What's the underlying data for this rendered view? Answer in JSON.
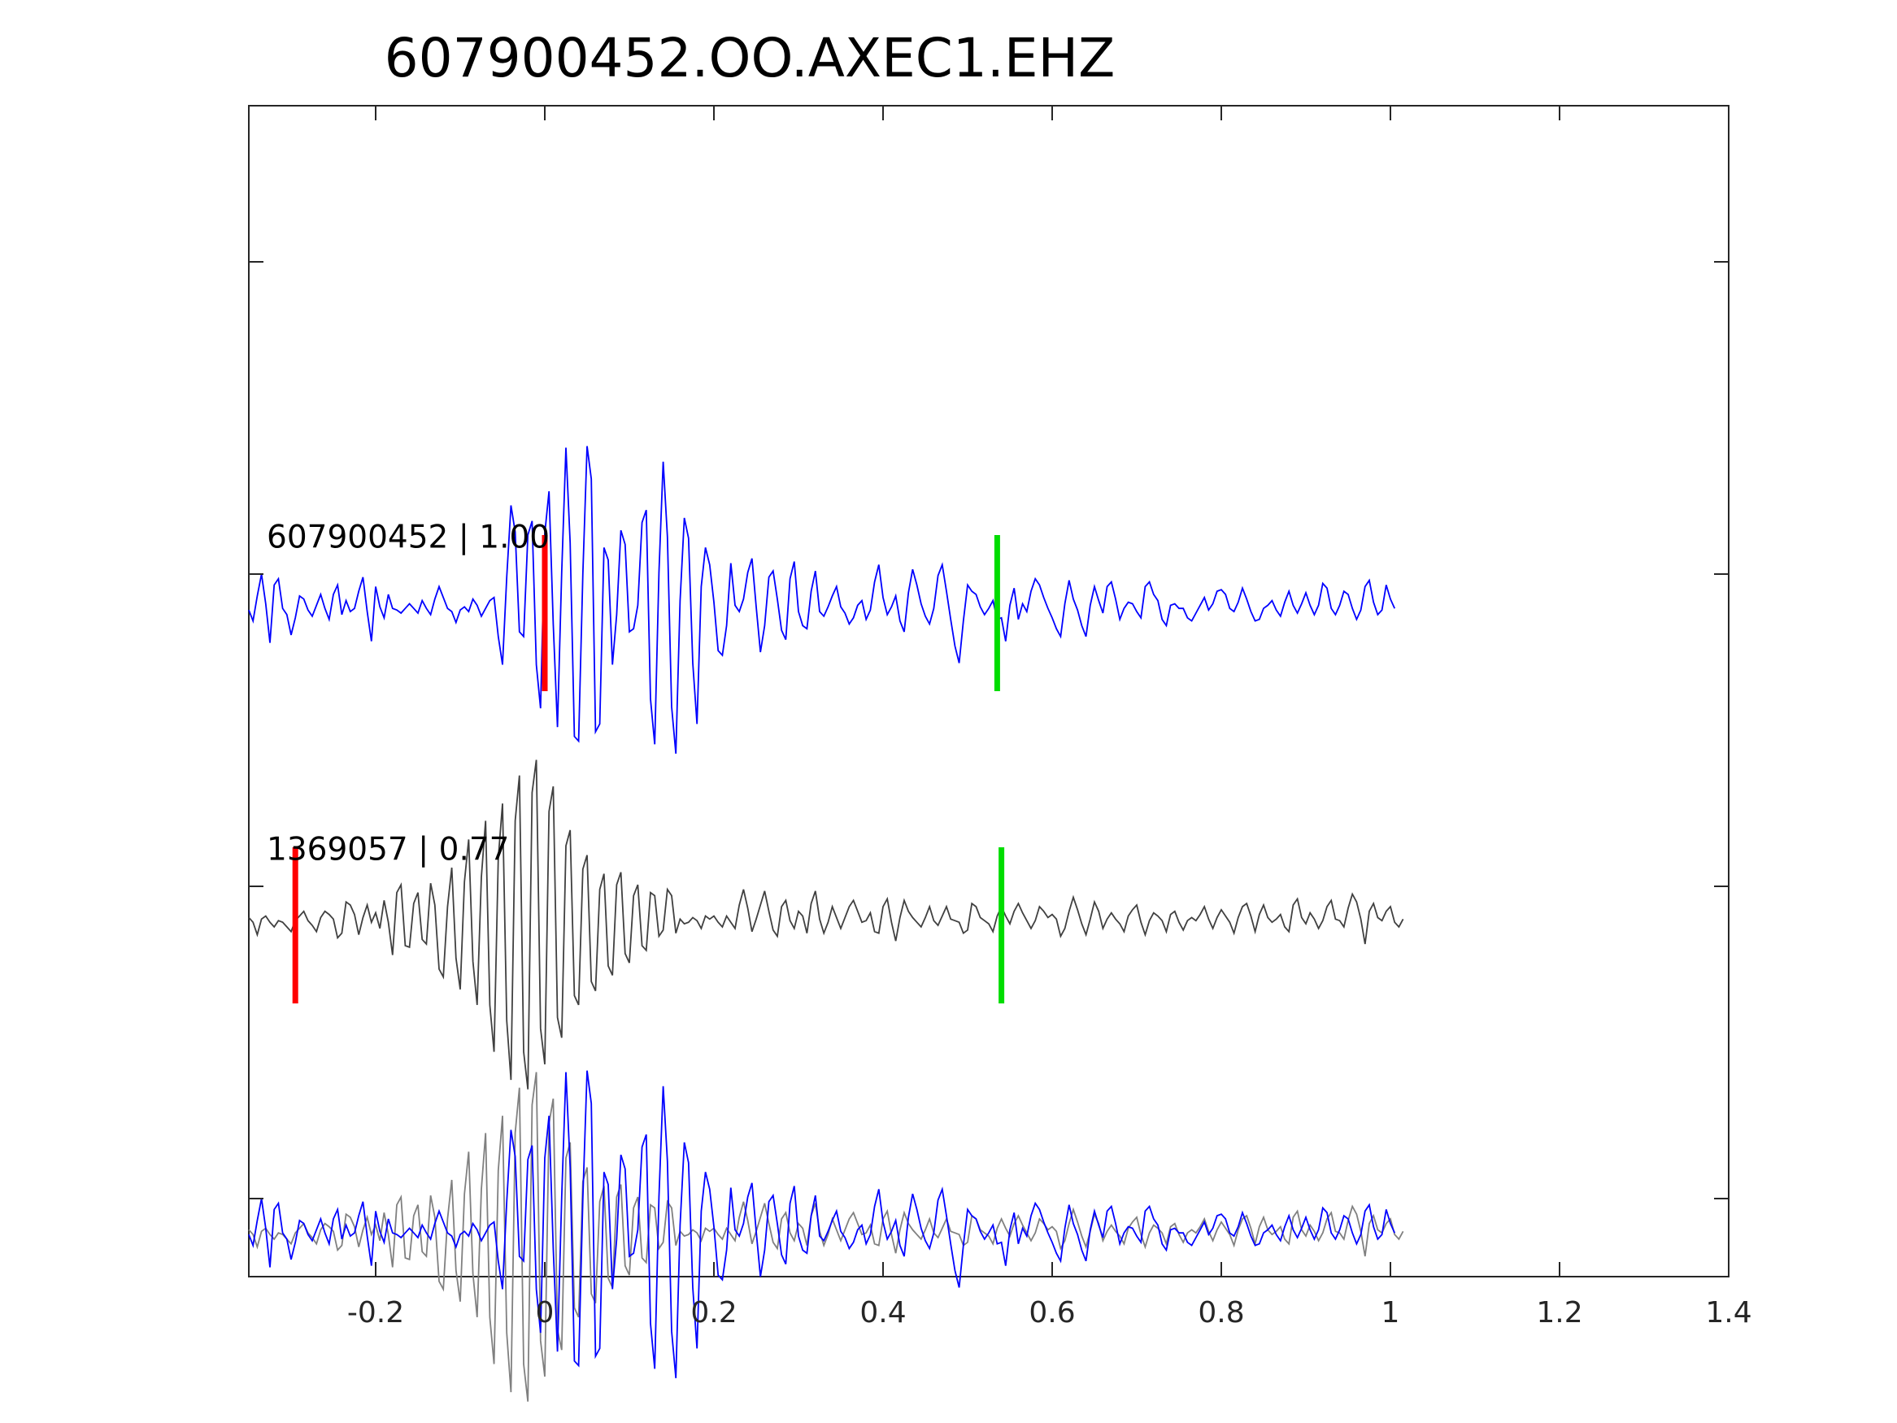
{
  "chart_data": {
    "type": "line",
    "title": "607900452.OO.AXEC1.EHZ",
    "xlabel": "",
    "ylabel": "",
    "xlim": [
      -0.35,
      1.4
    ],
    "xticks": [
      -0.2,
      0,
      0.2,
      0.4,
      0.6,
      0.8,
      1,
      1.2,
      1.4
    ],
    "xtick_labels": [
      "-0.2",
      "0",
      "0.2",
      "0.4",
      "0.6",
      "0.8",
      "1",
      "1.2",
      "1.4"
    ],
    "ylim": [
      -4.25,
      3.25
    ],
    "yticks": [
      -3.75,
      -1.75,
      0.25,
      2.25
    ],
    "grid": false,
    "colors": {
      "primary": "#0000ff",
      "template": "#404040",
      "overlay": "#808080",
      "p_pick": "#ff0000",
      "s_pick": "#00dd00",
      "axis": "#262626"
    },
    "series": [
      {
        "label": "607900452 | 1.00",
        "offset": 0,
        "color": "#0000ff",
        "p_pick": 0.0,
        "s_pick": 0.535,
        "dt": 0.005,
        "t0": -0.35,
        "values": [
          0.02,
          -0.05,
          0.11,
          0.25,
          0.06,
          -0.19,
          0.18,
          0.22,
          0.03,
          -0.01,
          -0.14,
          -0.03,
          0.11,
          0.09,
          0.02,
          -0.02,
          0.05,
          0.12,
          0.03,
          -0.04,
          0.12,
          0.18,
          -0.01,
          0.08,
          0.01,
          0.03,
          0.14,
          0.23,
          0.01,
          -0.18,
          0.17,
          0.04,
          -0.03,
          0.12,
          0.03,
          0.02,
          0.0,
          0.03,
          0.06,
          0.03,
          0.0,
          0.08,
          0.03,
          -0.01,
          0.09,
          0.17,
          0.1,
          0.03,
          0.01,
          -0.06,
          0.02,
          0.04,
          0.01,
          0.09,
          0.05,
          -0.02,
          0.03,
          0.08,
          0.1,
          -0.15,
          -0.33,
          0.23,
          0.69,
          0.52,
          -0.12,
          -0.15,
          0.5,
          0.59,
          -0.33,
          -0.61,
          0.51,
          0.78,
          -0.07,
          -0.73,
          0.26,
          1.06,
          0.45,
          -0.79,
          -0.82,
          0.25,
          1.07,
          0.86,
          -0.76,
          -0.71,
          0.42,
          0.34,
          -0.33,
          -0.01,
          0.53,
          0.44,
          -0.12,
          -0.1,
          0.05,
          0.58,
          0.66,
          -0.55,
          -0.84,
          0.26,
          0.97,
          0.49,
          -0.6,
          -0.9,
          0.08,
          0.61,
          0.48,
          -0.32,
          -0.71,
          0.17,
          0.42,
          0.31,
          0.07,
          -0.24,
          -0.27,
          -0.08,
          0.32,
          0.05,
          0.01,
          0.09,
          0.26,
          0.35,
          0.04,
          -0.25,
          -0.08,
          0.23,
          0.27,
          0.09,
          -0.11,
          -0.17,
          0.22,
          0.33,
          0.01,
          -0.08,
          -0.1,
          0.14,
          0.27,
          0.01,
          -0.02,
          0.04,
          0.11,
          0.17,
          0.04,
          0.0,
          -0.07,
          -0.03,
          0.05,
          0.08,
          -0.04,
          0.02,
          0.2,
          0.31,
          0.1,
          -0.01,
          0.04,
          0.11,
          -0.05,
          -0.12,
          0.13,
          0.28,
          0.18,
          0.06,
          -0.02,
          -0.07,
          0.03,
          0.24,
          0.31,
          0.14,
          -0.04,
          -0.21,
          -0.32,
          -0.05,
          0.18,
          0.14,
          0.12,
          0.04,
          -0.01,
          0.03,
          0.08,
          -0.04,
          -0.03,
          -0.18,
          0.05,
          0.16,
          -0.04,
          0.06,
          0.01,
          0.14,
          0.22,
          0.18,
          0.1,
          0.03,
          -0.03,
          -0.1,
          -0.15,
          0.06,
          0.21,
          0.09,
          0.02,
          -0.08,
          -0.15,
          0.05,
          0.17,
          0.08,
          0.0,
          0.17,
          0.2,
          0.09,
          -0.04,
          0.03,
          0.07,
          0.06,
          0.01,
          -0.03,
          0.17,
          0.2,
          0.12,
          0.08,
          -0.04,
          -0.08,
          0.05,
          0.06,
          0.03,
          0.03,
          -0.03,
          -0.05,
          0.0,
          0.05,
          0.1,
          0.02,
          0.06,
          0.14,
          0.15,
          0.12,
          0.03,
          0.01,
          0.07,
          0.16,
          0.09,
          0.01,
          -0.05,
          -0.04,
          0.03,
          0.05,
          0.08,
          0.02,
          -0.02,
          0.07,
          0.14,
          0.05,
          0.0,
          0.06,
          0.13,
          0.05,
          -0.01,
          0.05,
          0.19,
          0.16,
          0.03,
          -0.01,
          0.05,
          0.14,
          0.12,
          0.03,
          -0.04,
          0.02,
          0.17,
          0.21,
          0.07,
          -0.01,
          0.02,
          0.18,
          0.09,
          0.03
        ]
      },
      {
        "label": "1369057 | 0.77",
        "offset": -2,
        "color": "#404040",
        "p_pick": -0.295,
        "s_pick": 0.54,
        "dt": 0.005,
        "t0": -0.35,
        "values": [
          0.05,
          0.02,
          -0.06,
          0.04,
          0.06,
          0.02,
          -0.01,
          0.03,
          0.02,
          -0.01,
          -0.04,
          0.03,
          0.06,
          0.09,
          0.03,
          0.0,
          -0.04,
          0.05,
          0.09,
          0.07,
          0.04,
          -0.08,
          -0.05,
          0.15,
          0.13,
          0.07,
          -0.06,
          0.05,
          0.13,
          0.02,
          0.08,
          -0.02,
          0.16,
          0.02,
          -0.19,
          0.21,
          0.26,
          -0.13,
          -0.14,
          0.14,
          0.21,
          -0.09,
          -0.12,
          0.27,
          0.13,
          -0.28,
          -0.33,
          0.12,
          0.37,
          -0.21,
          -0.41,
          0.28,
          0.55,
          -0.23,
          -0.51,
          0.31,
          0.67,
          -0.51,
          -0.81,
          0.43,
          0.78,
          -0.61,
          -0.99,
          0.67,
          0.96,
          -0.81,
          -1.05,
          0.85,
          1.06,
          -0.66,
          -0.89,
          0.73,
          0.89,
          -0.59,
          -0.72,
          0.51,
          0.61,
          -0.45,
          -0.51,
          0.36,
          0.45,
          -0.36,
          -0.42,
          0.23,
          0.33,
          -0.26,
          -0.32,
          0.26,
          0.34,
          -0.18,
          -0.24,
          0.19,
          0.26,
          -0.13,
          -0.16,
          0.21,
          0.19,
          -0.07,
          -0.03,
          0.23,
          0.19,
          -0.05,
          0.04,
          0.01,
          0.02,
          0.05,
          0.03,
          -0.02,
          0.06,
          0.04,
          0.06,
          0.02,
          -0.01,
          0.06,
          0.02,
          -0.02,
          0.13,
          0.23,
          0.11,
          -0.04,
          0.04,
          0.13,
          0.22,
          0.09,
          -0.03,
          -0.07,
          0.12,
          0.16,
          0.03,
          -0.02,
          0.09,
          0.06,
          -0.05,
          0.14,
          0.22,
          0.04,
          -0.05,
          0.02,
          0.12,
          0.05,
          -0.02,
          0.05,
          0.12,
          0.16,
          0.09,
          0.02,
          0.03,
          0.08,
          -0.04,
          -0.05,
          0.12,
          0.17,
          0.02,
          -0.1,
          0.05,
          0.16,
          0.09,
          0.05,
          0.02,
          -0.01,
          0.05,
          0.12,
          0.03,
          0.0,
          0.06,
          0.12,
          0.04,
          0.03,
          0.02,
          -0.05,
          -0.03,
          0.14,
          0.12,
          0.05,
          0.03,
          0.01,
          -0.04,
          0.06,
          0.12,
          0.06,
          0.01,
          0.09,
          0.14,
          0.08,
          0.03,
          -0.02,
          0.03,
          0.12,
          0.09,
          0.05,
          0.07,
          0.04,
          -0.07,
          -0.02,
          0.09,
          0.18,
          0.1,
          0.01,
          -0.06,
          0.04,
          0.15,
          0.09,
          -0.02,
          0.04,
          0.08,
          0.04,
          0.01,
          -0.04,
          0.06,
          0.1,
          0.13,
          0.02,
          -0.06,
          0.03,
          0.08,
          0.06,
          0.03,
          -0.04,
          0.07,
          0.09,
          0.02,
          -0.03,
          0.03,
          0.05,
          0.03,
          0.07,
          0.12,
          0.04,
          -0.02,
          0.05,
          0.1,
          0.06,
          0.02,
          -0.05,
          0.05,
          0.12,
          0.14,
          0.06,
          -0.04,
          0.07,
          0.13,
          0.05,
          0.02,
          0.04,
          0.07,
          -0.01,
          -0.04,
          0.13,
          0.17,
          0.05,
          0.01,
          0.08,
          0.04,
          -0.02,
          0.03,
          0.12,
          0.16,
          0.04,
          0.03,
          -0.01,
          0.11,
          0.2,
          0.15,
          0.04,
          -0.12,
          0.09,
          0.14,
          0.05,
          0.03,
          0.09,
          0.12,
          0.02,
          -0.01,
          0.04
        ]
      }
    ],
    "overlay": {
      "offset": -4,
      "note_series": [
        "607900452 | 1.00",
        "1369057 | 0.77"
      ]
    }
  }
}
